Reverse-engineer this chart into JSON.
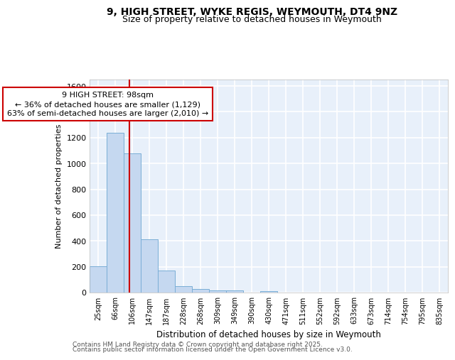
{
  "title_line1": "9, HIGH STREET, WYKE REGIS, WEYMOUTH, DT4 9NZ",
  "title_line2": "Size of property relative to detached houses in Weymouth",
  "xlabel": "Distribution of detached houses by size in Weymouth",
  "ylabel": "Number of detached properties",
  "bar_labels": [
    "25sqm",
    "66sqm",
    "106sqm",
    "147sqm",
    "187sqm",
    "228sqm",
    "268sqm",
    "309sqm",
    "349sqm",
    "390sqm",
    "430sqm",
    "471sqm",
    "511sqm",
    "552sqm",
    "592sqm",
    "633sqm",
    "673sqm",
    "714sqm",
    "754sqm",
    "795sqm",
    "835sqm"
  ],
  "bar_values": [
    205,
    1235,
    1080,
    415,
    170,
    48,
    25,
    15,
    15,
    0,
    13,
    0,
    0,
    0,
    0,
    0,
    0,
    0,
    0,
    0,
    0
  ],
  "bar_color": "#c5d8f0",
  "bar_edge_color": "#7aaed6",
  "bg_color": "#e8f0fa",
  "grid_color": "#ffffff",
  "red_line_x": 1.82,
  "annotation_text": "9 HIGH STREET: 98sqm\n← 36% of detached houses are smaller (1,129)\n63% of semi-detached houses are larger (2,010) →",
  "annotation_box_color": "#ffffff",
  "annotation_box_edge": "#cc0000",
  "ylim": [
    0,
    1650
  ],
  "yticks": [
    0,
    200,
    400,
    600,
    800,
    1000,
    1200,
    1400,
    1600
  ],
  "footer_line1": "Contains HM Land Registry data © Crown copyright and database right 2025.",
  "footer_line2": "Contains public sector information licensed under the Open Government Licence v3.0."
}
